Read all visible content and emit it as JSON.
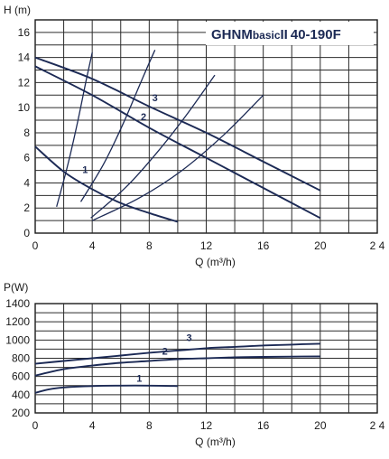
{
  "colors": {
    "curve": "#1c2a55",
    "grid": "#2b2b2b",
    "text": "#1a1a1a"
  },
  "chart_data": [
    {
      "type": "line",
      "title": "GHNMbasic II 40-190F",
      "title_parts": {
        "main": "GHNM",
        "sub": "basic",
        "bars": "II",
        "model": "40-190F"
      },
      "xlabel": "Q (m³/h)",
      "ylabel": "H (m)",
      "xlim": [
        0,
        24
      ],
      "ylim": [
        0,
        17
      ],
      "xticks": [
        0,
        4,
        8,
        12,
        16,
        20,
        24
      ],
      "xtick_labels": [
        "0",
        "4",
        "8",
        "12",
        "16",
        "20",
        "2 4"
      ],
      "yticks": [
        0,
        2,
        4,
        6,
        8,
        10,
        12,
        14,
        16
      ],
      "ytick_labels": [
        "0",
        "2",
        "4",
        "6",
        "8",
        "10",
        "12",
        "14",
        "16"
      ],
      "grid": true,
      "series": [
        {
          "name": "1",
          "x": [
            0,
            2,
            4,
            6,
            8,
            10
          ],
          "y": [
            6.9,
            4.9,
            3.5,
            2.4,
            1.6,
            0.9
          ]
        },
        {
          "name": "2",
          "x": [
            0,
            4,
            8,
            12,
            16,
            20
          ],
          "y": [
            13.3,
            11.0,
            8.4,
            6.0,
            3.6,
            1.2
          ]
        },
        {
          "name": "3",
          "x": [
            0,
            4,
            8,
            12,
            16,
            20
          ],
          "y": [
            14.0,
            12.3,
            10.1,
            8.0,
            5.7,
            3.4
          ]
        }
      ],
      "system_curves": [
        {
          "x": [
            1.5,
            2.3,
            3.0,
            3.6,
            4.0
          ],
          "y": [
            2.1,
            5.5,
            9.0,
            12.3,
            14.4
          ]
        },
        {
          "x": [
            3.2,
            4.8,
            6.2,
            7.4,
            8.4
          ],
          "y": [
            2.5,
            5.5,
            8.8,
            12.0,
            14.6
          ]
        },
        {
          "x": [
            3.9,
            6.4,
            8.6,
            10.6,
            12.6
          ],
          "y": [
            1.2,
            3.7,
            6.5,
            9.4,
            12.6
          ]
        },
        {
          "x": [
            4.0,
            7.3,
            10.3,
            13.3,
            16.0
          ],
          "y": [
            1.0,
            2.8,
            5.0,
            7.9,
            11.0
          ]
        }
      ],
      "curve_labels": [
        {
          "text": "1",
          "x": 3.5,
          "y": 4.8
        },
        {
          "text": "2",
          "x": 7.6,
          "y": 9.0
        },
        {
          "text": "3",
          "x": 8.4,
          "y": 10.5
        }
      ]
    },
    {
      "type": "line",
      "title": "",
      "xlabel": "Q (m³/h)",
      "ylabel": "P(W)",
      "xlim": [
        0,
        24
      ],
      "ylim": [
        200,
        1400
      ],
      "xticks": [
        0,
        4,
        8,
        12,
        16,
        20,
        24
      ],
      "xtick_labels": [
        "0",
        "4",
        "8",
        "12",
        "16",
        "20",
        "2 4"
      ],
      "yticks": [
        200,
        400,
        600,
        800,
        1000,
        1200,
        1400
      ],
      "ytick_labels": [
        "200",
        "400",
        "600",
        "800",
        "1000",
        "1200",
        "1400"
      ],
      "grid": true,
      "series": [
        {
          "name": "1",
          "x": [
            0,
            1,
            2,
            4,
            6,
            8,
            10
          ],
          "y": [
            420,
            460,
            480,
            495,
            500,
            500,
            495
          ]
        },
        {
          "name": "2",
          "x": [
            0,
            2,
            4,
            6,
            8,
            10,
            12,
            14,
            16,
            18,
            20
          ],
          "y": [
            610,
            680,
            720,
            750,
            770,
            790,
            800,
            810,
            815,
            818,
            820
          ]
        },
        {
          "name": "3",
          "x": [
            0,
            2,
            4,
            6,
            8,
            10,
            12,
            14,
            16,
            18,
            20
          ],
          "y": [
            740,
            770,
            800,
            830,
            860,
            885,
            910,
            925,
            940,
            950,
            960
          ]
        }
      ],
      "curve_labels": [
        {
          "text": "1",
          "x": 7.3,
          "y": 540
        },
        {
          "text": "2",
          "x": 9.1,
          "y": 840
        },
        {
          "text": "3",
          "x": 10.8,
          "y": 990
        }
      ]
    }
  ]
}
